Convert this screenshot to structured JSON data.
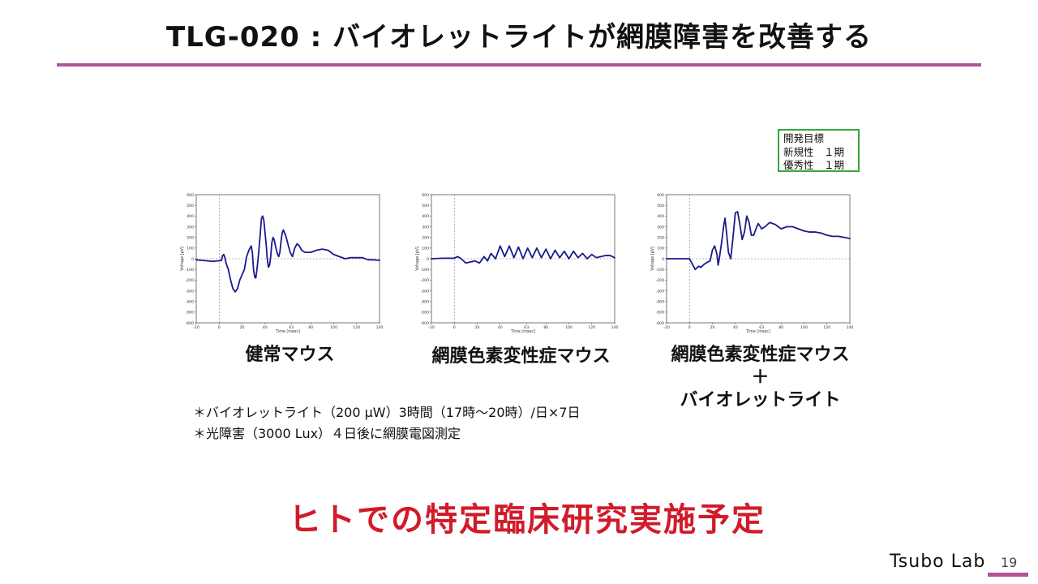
{
  "slide": {
    "title": "TLG-020 : バイオレットライトが網膜障害を改善する",
    "target_box": [
      "開発目標",
      "新規性　１期",
      "優秀性　１期"
    ],
    "notes": [
      "＊バイオレットライト（200 μW）3時間（17時〜20時）/日×7日",
      "＊光障害（3000 Lux）４日後に網膜電図測定"
    ],
    "bottom_message": "ヒトでの特定臨床研究実施予定",
    "logo": "Tsubo Lab",
    "page_number": "19",
    "colors": {
      "accent": "#b2539a",
      "trace": "#1a1a8c",
      "message": "#d11b2a",
      "box": "#3aa640"
    }
  },
  "chart_data": [
    {
      "type": "line",
      "label_lines": [
        "健常マウス"
      ],
      "xlabel": "Time [msec]",
      "ylabel": "Voltage [μV]",
      "xlim": [
        -20,
        140
      ],
      "ylim": [
        -600,
        600
      ],
      "xticks": [
        "-20",
        "0",
        "20",
        "40",
        "63",
        "80",
        "100",
        "120",
        "140"
      ],
      "yticks": [
        "600",
        "500",
        "400",
        "300",
        "200",
        "100",
        "0",
        "-100",
        "-200",
        "-300",
        "-400",
        "-500",
        "-600"
      ],
      "series": [
        {
          "x": [
            -20,
            -15,
            -10,
            -5,
            -2,
            0,
            2,
            3,
            4,
            5,
            6,
            8,
            10,
            12,
            14,
            16,
            18,
            20,
            22,
            23,
            24,
            26,
            28,
            29,
            30,
            31,
            32,
            33,
            34,
            35,
            36,
            37,
            38,
            39,
            40,
            41,
            42,
            43,
            44,
            45,
            46,
            47,
            48,
            49,
            50,
            51,
            52,
            53,
            54,
            55,
            56,
            58,
            60,
            62,
            64,
            66,
            68,
            70,
            72,
            75,
            80,
            85,
            90,
            95,
            100,
            105,
            110,
            115,
            120,
            125,
            130,
            135,
            140
          ],
          "y": [
            -10,
            -15,
            -20,
            -25,
            -20,
            -20,
            -15,
            30,
            40,
            10,
            -40,
            -100,
            -200,
            -280,
            -310,
            -280,
            -200,
            -150,
            -100,
            -40,
            20,
            80,
            120,
            60,
            -100,
            -170,
            -180,
            -100,
            0,
            120,
            250,
            380,
            400,
            360,
            250,
            140,
            0,
            -80,
            -60,
            20,
            150,
            200,
            180,
            130,
            80,
            40,
            20,
            60,
            160,
            240,
            270,
            220,
            140,
            60,
            20,
            100,
            140,
            120,
            80,
            60,
            60,
            80,
            90,
            80,
            40,
            20,
            0,
            10,
            10,
            10,
            -10,
            -10,
            -15
          ]
        }
      ]
    },
    {
      "type": "line",
      "label_lines": [
        "網膜色素変性症マウス"
      ],
      "xlabel": "Time [msec]",
      "ylabel": "Voltage [μV]",
      "xlim": [
        -20,
        140
      ],
      "ylim": [
        -600,
        600
      ],
      "xticks": [
        "-20",
        "0",
        "20",
        "40",
        "63",
        "80",
        "100",
        "120",
        "140"
      ],
      "yticks": [
        "600",
        "500",
        "400",
        "300",
        "200",
        "100",
        "0",
        "-100",
        "-200",
        "-300",
        "-400",
        "-500",
        "-600"
      ],
      "series": [
        {
          "x": [
            -20,
            -10,
            0,
            3,
            6,
            8,
            10,
            14,
            18,
            22,
            26,
            29,
            32,
            36,
            40,
            44,
            48,
            52,
            56,
            60,
            64,
            68,
            72,
            76,
            80,
            84,
            88,
            92,
            96,
            100,
            104,
            108,
            112,
            116,
            120,
            124,
            128,
            132,
            136,
            140
          ],
          "y": [
            0,
            5,
            5,
            20,
            0,
            -20,
            -40,
            -30,
            -20,
            -40,
            20,
            -20,
            50,
            0,
            120,
            20,
            120,
            10,
            110,
            0,
            100,
            10,
            100,
            10,
            90,
            0,
            80,
            10,
            70,
            0,
            70,
            10,
            50,
            0,
            40,
            10,
            20,
            30,
            30,
            10
          ]
        }
      ]
    },
    {
      "type": "line",
      "label_lines": [
        "網膜色素変性症マウス",
        "＋",
        "バイオレットライト"
      ],
      "xlabel": "Time [msec]",
      "ylabel": "Voltage [μV]",
      "xlim": [
        -20,
        140
      ],
      "ylim": [
        -600,
        600
      ],
      "xticks": [
        "-20",
        "0",
        "20",
        "40",
        "63",
        "80",
        "100",
        "120",
        "140"
      ],
      "yticks": [
        "600",
        "500",
        "400",
        "300",
        "200",
        "100",
        "0",
        "-100",
        "-200",
        "-300",
        "-400",
        "-500",
        "-600"
      ],
      "series": [
        {
          "x": [
            -20,
            -10,
            -5,
            0,
            3,
            5,
            8,
            10,
            13,
            16,
            18,
            20,
            22,
            24,
            25,
            26,
            28,
            30,
            31,
            32,
            34,
            36,
            38,
            40,
            42,
            44,
            46,
            48,
            50,
            52,
            54,
            56,
            58,
            60,
            63,
            66,
            70,
            75,
            80,
            85,
            90,
            95,
            100,
            105,
            110,
            115,
            120,
            125,
            130,
            135,
            140
          ],
          "y": [
            0,
            0,
            0,
            0,
            -60,
            -100,
            -70,
            -80,
            -50,
            -30,
            -20,
            80,
            120,
            40,
            -60,
            0,
            150,
            320,
            380,
            280,
            60,
            0,
            200,
            430,
            440,
            320,
            180,
            250,
            400,
            340,
            220,
            220,
            280,
            330,
            280,
            300,
            340,
            320,
            280,
            300,
            300,
            280,
            260,
            250,
            250,
            240,
            220,
            210,
            210,
            200,
            190
          ]
        }
      ]
    }
  ]
}
